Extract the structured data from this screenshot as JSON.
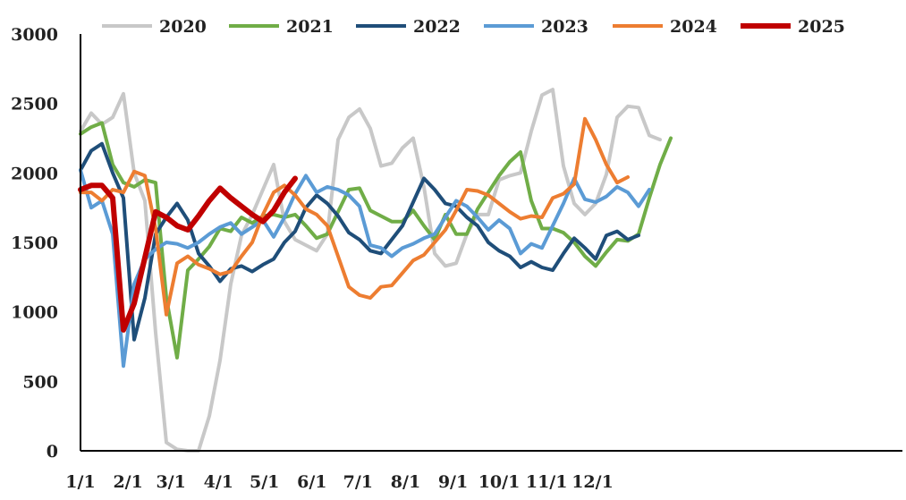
{
  "chart_data": {
    "type": "line",
    "title": "",
    "xlabel": "",
    "ylabel": "",
    "ylim": [
      0,
      3000
    ],
    "yticks": [
      "0",
      "500",
      "1000",
      "1500",
      "2000",
      "2500",
      "3000"
    ],
    "xticks": [
      "1/1",
      "2/1",
      "3/1",
      "4/1",
      "5/1",
      "6/1",
      "7/1",
      "8/1",
      "9/1",
      "10/1",
      "11/1",
      "12/1"
    ],
    "x_unit": "week of year (1-53)",
    "legend_position": "top",
    "grid": false,
    "series": [
      {
        "name": "2020",
        "color": "#c8c8c8",
        "width": 4,
        "points": [
          [
            1,
            2300
          ],
          [
            2,
            2430
          ],
          [
            3,
            2350
          ],
          [
            4,
            2400
          ],
          [
            5,
            2570
          ],
          [
            6,
            2000
          ],
          [
            7,
            1800
          ],
          [
            8,
            850
          ],
          [
            9,
            60
          ],
          [
            10,
            10
          ],
          [
            11,
            0
          ],
          [
            12,
            0
          ],
          [
            13,
            250
          ],
          [
            14,
            650
          ],
          [
            15,
            1200
          ],
          [
            16,
            1550
          ],
          [
            17,
            1700
          ],
          [
            18,
            1880
          ],
          [
            19,
            2060
          ],
          [
            20,
            1650
          ],
          [
            21,
            1520
          ],
          [
            22,
            1480
          ],
          [
            23,
            1440
          ],
          [
            24,
            1560
          ],
          [
            25,
            2240
          ],
          [
            26,
            2400
          ],
          [
            27,
            2460
          ],
          [
            28,
            2320
          ],
          [
            29,
            2050
          ],
          [
            30,
            2070
          ],
          [
            31,
            2180
          ],
          [
            32,
            2250
          ],
          [
            33,
            1900
          ],
          [
            34,
            1420
          ],
          [
            35,
            1330
          ],
          [
            36,
            1350
          ],
          [
            37,
            1560
          ],
          [
            38,
            1700
          ],
          [
            39,
            1700
          ],
          [
            40,
            1950
          ],
          [
            41,
            1980
          ],
          [
            42,
            2000
          ],
          [
            43,
            2300
          ],
          [
            44,
            2560
          ],
          [
            45,
            2600
          ],
          [
            46,
            2050
          ],
          [
            47,
            1780
          ],
          [
            48,
            1700
          ],
          [
            49,
            1780
          ],
          [
            50,
            1990
          ],
          [
            51,
            2400
          ],
          [
            52,
            2480
          ],
          [
            53,
            2470
          ],
          [
            54,
            2270
          ],
          [
            55,
            2240
          ]
        ]
      },
      {
        "name": "2021",
        "color": "#70ad47",
        "width": 4,
        "points": [
          [
            1,
            2280
          ],
          [
            2,
            2330
          ],
          [
            3,
            2360
          ],
          [
            4,
            2060
          ],
          [
            5,
            1930
          ],
          [
            6,
            1900
          ],
          [
            7,
            1950
          ],
          [
            8,
            1930
          ],
          [
            9,
            1100
          ],
          [
            10,
            670
          ],
          [
            11,
            1300
          ],
          [
            12,
            1380
          ],
          [
            13,
            1470
          ],
          [
            14,
            1600
          ],
          [
            15,
            1580
          ],
          [
            16,
            1680
          ],
          [
            17,
            1640
          ],
          [
            18,
            1690
          ],
          [
            19,
            1700
          ],
          [
            20,
            1680
          ],
          [
            21,
            1700
          ],
          [
            22,
            1620
          ],
          [
            23,
            1530
          ],
          [
            24,
            1560
          ],
          [
            25,
            1720
          ],
          [
            26,
            1880
          ],
          [
            27,
            1890
          ],
          [
            28,
            1730
          ],
          [
            29,
            1690
          ],
          [
            30,
            1650
          ],
          [
            31,
            1650
          ],
          [
            32,
            1730
          ],
          [
            33,
            1620
          ],
          [
            34,
            1520
          ],
          [
            35,
            1700
          ],
          [
            36,
            1560
          ],
          [
            37,
            1560
          ],
          [
            38,
            1740
          ],
          [
            39,
            1860
          ],
          [
            40,
            1980
          ],
          [
            41,
            2080
          ],
          [
            42,
            2150
          ],
          [
            43,
            1800
          ],
          [
            44,
            1600
          ],
          [
            45,
            1600
          ],
          [
            46,
            1570
          ],
          [
            47,
            1500
          ],
          [
            48,
            1400
          ],
          [
            49,
            1330
          ],
          [
            50,
            1430
          ],
          [
            51,
            1520
          ],
          [
            52,
            1510
          ],
          [
            53,
            1560
          ],
          [
            54,
            1820
          ],
          [
            55,
            2060
          ],
          [
            56,
            2250
          ]
        ]
      },
      {
        "name": "2022",
        "color": "#1f4e79",
        "width": 4,
        "points": [
          [
            1,
            2020
          ],
          [
            2,
            2160
          ],
          [
            3,
            2210
          ],
          [
            4,
            2000
          ],
          [
            5,
            1820
          ],
          [
            6,
            800
          ],
          [
            7,
            1100
          ],
          [
            8,
            1560
          ],
          [
            9,
            1680
          ],
          [
            10,
            1780
          ],
          [
            11,
            1660
          ],
          [
            12,
            1420
          ],
          [
            13,
            1330
          ],
          [
            14,
            1220
          ],
          [
            15,
            1310
          ],
          [
            16,
            1330
          ],
          [
            17,
            1290
          ],
          [
            18,
            1340
          ],
          [
            19,
            1380
          ],
          [
            20,
            1500
          ],
          [
            21,
            1580
          ],
          [
            22,
            1750
          ],
          [
            23,
            1840
          ],
          [
            24,
            1780
          ],
          [
            25,
            1690
          ],
          [
            26,
            1570
          ],
          [
            27,
            1520
          ],
          [
            28,
            1440
          ],
          [
            29,
            1420
          ],
          [
            30,
            1520
          ],
          [
            31,
            1620
          ],
          [
            32,
            1790
          ],
          [
            33,
            1960
          ],
          [
            34,
            1880
          ],
          [
            35,
            1780
          ],
          [
            36,
            1760
          ],
          [
            37,
            1680
          ],
          [
            38,
            1620
          ],
          [
            39,
            1500
          ],
          [
            40,
            1440
          ],
          [
            41,
            1400
          ],
          [
            42,
            1320
          ],
          [
            43,
            1360
          ],
          [
            44,
            1320
          ],
          [
            45,
            1300
          ],
          [
            46,
            1420
          ],
          [
            47,
            1530
          ],
          [
            48,
            1460
          ],
          [
            49,
            1380
          ],
          [
            50,
            1550
          ],
          [
            51,
            1580
          ],
          [
            52,
            1520
          ],
          [
            53,
            1550
          ]
        ]
      },
      {
        "name": "2023",
        "color": "#5b9bd5",
        "width": 4,
        "points": [
          [
            1,
            2020
          ],
          [
            2,
            1750
          ],
          [
            3,
            1800
          ],
          [
            4,
            1560
          ],
          [
            5,
            610
          ],
          [
            6,
            1200
          ],
          [
            7,
            1380
          ],
          [
            8,
            1450
          ],
          [
            9,
            1500
          ],
          [
            10,
            1490
          ],
          [
            11,
            1460
          ],
          [
            12,
            1500
          ],
          [
            13,
            1560
          ],
          [
            14,
            1610
          ],
          [
            15,
            1640
          ],
          [
            16,
            1560
          ],
          [
            17,
            1610
          ],
          [
            18,
            1660
          ],
          [
            19,
            1540
          ],
          [
            20,
            1680
          ],
          [
            21,
            1850
          ],
          [
            22,
            1980
          ],
          [
            23,
            1860
          ],
          [
            24,
            1900
          ],
          [
            25,
            1880
          ],
          [
            26,
            1840
          ],
          [
            27,
            1760
          ],
          [
            28,
            1480
          ],
          [
            29,
            1460
          ],
          [
            30,
            1400
          ],
          [
            31,
            1460
          ],
          [
            32,
            1490
          ],
          [
            33,
            1530
          ],
          [
            34,
            1560
          ],
          [
            35,
            1680
          ],
          [
            36,
            1800
          ],
          [
            37,
            1760
          ],
          [
            38,
            1680
          ],
          [
            39,
            1590
          ],
          [
            40,
            1660
          ],
          [
            41,
            1600
          ],
          [
            42,
            1420
          ],
          [
            43,
            1490
          ],
          [
            44,
            1460
          ],
          [
            45,
            1620
          ],
          [
            46,
            1780
          ],
          [
            47,
            1960
          ],
          [
            48,
            1810
          ],
          [
            49,
            1790
          ],
          [
            50,
            1830
          ],
          [
            51,
            1900
          ],
          [
            52,
            1860
          ],
          [
            53,
            1760
          ],
          [
            54,
            1880
          ]
        ]
      },
      {
        "name": "2024",
        "color": "#ed7d31",
        "width": 4,
        "points": [
          [
            1,
            1860
          ],
          [
            2,
            1860
          ],
          [
            3,
            1800
          ],
          [
            4,
            1880
          ],
          [
            5,
            1860
          ],
          [
            6,
            2010
          ],
          [
            7,
            1980
          ],
          [
            8,
            1600
          ],
          [
            9,
            980
          ],
          [
            10,
            1350
          ],
          [
            11,
            1400
          ],
          [
            12,
            1340
          ],
          [
            13,
            1310
          ],
          [
            14,
            1270
          ],
          [
            15,
            1290
          ],
          [
            16,
            1400
          ],
          [
            17,
            1500
          ],
          [
            18,
            1700
          ],
          [
            19,
            1860
          ],
          [
            20,
            1910
          ],
          [
            21,
            1840
          ],
          [
            22,
            1740
          ],
          [
            23,
            1700
          ],
          [
            24,
            1620
          ],
          [
            25,
            1400
          ],
          [
            26,
            1180
          ],
          [
            27,
            1120
          ],
          [
            28,
            1100
          ],
          [
            29,
            1180
          ],
          [
            30,
            1190
          ],
          [
            31,
            1280
          ],
          [
            32,
            1370
          ],
          [
            33,
            1410
          ],
          [
            34,
            1500
          ],
          [
            35,
            1590
          ],
          [
            36,
            1730
          ],
          [
            37,
            1880
          ],
          [
            38,
            1870
          ],
          [
            39,
            1840
          ],
          [
            40,
            1780
          ],
          [
            41,
            1720
          ],
          [
            42,
            1670
          ],
          [
            43,
            1690
          ],
          [
            44,
            1680
          ],
          [
            45,
            1820
          ],
          [
            46,
            1850
          ],
          [
            47,
            1920
          ],
          [
            48,
            2390
          ],
          [
            49,
            2240
          ],
          [
            50,
            2060
          ],
          [
            51,
            1930
          ],
          [
            52,
            1970
          ]
        ]
      },
      {
        "name": "2025",
        "color": "#c00000",
        "width": 6,
        "points": [
          [
            1,
            1880
          ],
          [
            2,
            1910
          ],
          [
            3,
            1910
          ],
          [
            4,
            1820
          ],
          [
            5,
            870
          ],
          [
            6,
            1060
          ],
          [
            7,
            1390
          ],
          [
            8,
            1720
          ],
          [
            9,
            1680
          ],
          [
            10,
            1620
          ],
          [
            11,
            1590
          ],
          [
            12,
            1690
          ],
          [
            13,
            1800
          ],
          [
            14,
            1890
          ],
          [
            15,
            1820
          ],
          [
            16,
            1760
          ],
          [
            17,
            1700
          ],
          [
            18,
            1650
          ],
          [
            19,
            1730
          ],
          [
            20,
            1860
          ],
          [
            21,
            1960
          ]
        ]
      }
    ]
  }
}
